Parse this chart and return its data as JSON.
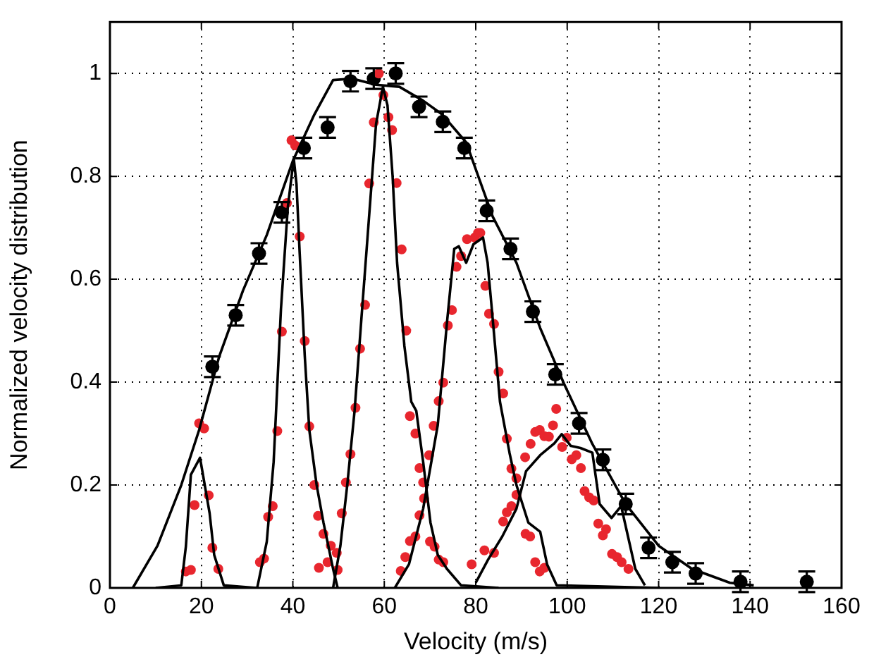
{
  "chart_data": {
    "type": "line",
    "xlabel": "Velocity (m/s)",
    "ylabel": "Normalized velocity distribution",
    "xlim": [
      0,
      160
    ],
    "xticks": [
      0,
      20,
      40,
      60,
      80,
      100,
      120,
      140,
      160
    ],
    "ylim": [
      0,
      1.1
    ],
    "yticks": [
      0,
      0.2,
      0.4,
      0.6,
      0.8,
      1
    ],
    "grid": true,
    "legend": false,
    "marker": "none",
    "line_style": "solid",
    "series": [
      {
        "color": "#000000",
        "x": [
          5,
          10.4,
          15.6,
          19.5,
          23.9,
          29.1,
          34.3,
          40,
          44.7,
          48.8,
          53,
          58.2,
          63.3,
          68.5,
          72.7,
          77.9,
          83.7,
          88.9,
          94.1,
          99.3,
          105.5,
          112.8,
          120,
          127.3,
          135.6,
          140.8
        ],
        "values": [
          0,
          0.082,
          0.2,
          0.307,
          0.45,
          0.578,
          0.686,
          0.83,
          0.92,
          0.987,
          0.99,
          0.978,
          0.974,
          0.947,
          0.92,
          0.866,
          0.722,
          0.632,
          0.505,
          0.397,
          0.28,
          0.163,
          0.082,
          0.037,
          0.01,
          0.005
        ]
      },
      {
        "color": "#000000",
        "x": [
          10,
          15.6,
          16.6,
          17.7,
          19.7,
          21.8,
          22.8,
          24.9,
          32
        ],
        "values": [
          0,
          0.005,
          0.08,
          0.22,
          0.253,
          0.145,
          0.064,
          0.005,
          0
        ]
      },
      {
        "color": "#000000",
        "x": [
          25,
          32.2,
          34.3,
          35.8,
          37.4,
          38.9,
          40.2,
          40.8,
          41.5,
          42.6,
          43.6,
          45.2,
          46.7,
          48.8,
          49.8
        ],
        "values": [
          0,
          0,
          0.09,
          0.245,
          0.542,
          0.74,
          0.835,
          0.785,
          0.65,
          0.452,
          0.307,
          0.2,
          0.127,
          0.037,
          0
        ]
      },
      {
        "color": "#000000",
        "x": [
          48.8,
          50.4,
          51.9,
          53.5,
          55,
          56.6,
          58.2,
          59.7,
          60.7,
          61.8,
          62.8,
          64.4,
          65.9,
          67,
          68.5,
          70.1,
          71.7,
          73.7,
          76.8,
          85
        ],
        "values": [
          0,
          0.082,
          0.2,
          0.344,
          0.524,
          0.713,
          0.902,
          0.974,
          0.938,
          0.803,
          0.632,
          0.47,
          0.362,
          0.344,
          0.245,
          0.127,
          0.064,
          0.037,
          0.005,
          0
        ]
      },
      {
        "color": "#000000",
        "x": [
          62.3,
          65.4,
          68.5,
          71.7,
          73.7,
          75.3,
          76.3,
          77.9,
          79.5,
          81.6,
          82.6,
          83.7,
          85.3,
          87.4,
          88.9,
          91.5,
          94.1,
          95.6,
          97.7,
          120
        ],
        "values": [
          0,
          0.046,
          0.154,
          0.317,
          0.515,
          0.659,
          0.664,
          0.632,
          0.668,
          0.681,
          0.632,
          0.524,
          0.362,
          0.262,
          0.2,
          0.127,
          0.109,
          0.046,
          0.005,
          0
        ]
      },
      {
        "color": "#000000",
        "x": [
          80,
          82.7,
          85.8,
          88.9,
          91,
          94.1,
          97.2,
          98.8,
          100.8,
          102.9,
          105.5,
          107.1,
          109.7,
          111.8,
          113.3,
          114.9,
          117
        ],
        "values": [
          0.01,
          0.055,
          0.1,
          0.154,
          0.227,
          0.258,
          0.281,
          0.299,
          0.276,
          0.272,
          0.263,
          0.163,
          0.136,
          0.159,
          0.1,
          0.037,
          0.005
        ]
      },
      {
        "type": "scatter",
        "marker": "circle",
        "color": "#e8262e",
        "x": [
          16.6,
          17.7,
          19.5,
          20.6,
          18.5,
          21.6,
          22.4,
          23.7,
          32.8,
          33.7,
          34.6,
          35.6,
          36.6,
          37.6,
          38.7,
          39.7,
          40.5,
          41.5,
          42.6,
          43.6,
          44.7,
          45.5,
          46.7,
          45.7,
          48.3,
          49.6,
          47.6,
          49.8,
          50.7,
          51.6,
          52.6,
          53.7,
          54.7,
          55.8,
          56.7,
          57.7,
          58.8,
          59.8,
          60.9,
          61.7,
          62.7,
          63.8,
          64.8,
          65.6,
          66.8,
          67.7,
          68.5,
          68.7,
          67.7,
          66.8,
          65.6,
          64.6,
          63.6,
          70,
          71,
          71.9,
          72.9,
          69.8,
          70.8,
          71.9,
          72.9,
          73.9,
          74.8,
          75.8,
          76.8,
          78.1,
          79.8,
          80.5,
          81,
          82.1,
          82.9,
          84,
          85,
          86,
          86.8,
          87.8,
          88.9,
          88.9,
          87.8,
          86.8,
          86,
          90.9,
          91.9,
          93,
          94,
          95,
          79.1,
          81.9,
          84,
          90.8,
          92,
          93,
          94,
          95,
          96,
          96.9,
          97.6,
          98.9,
          99.9,
          101,
          102,
          103,
          103.8,
          104.8,
          105.8,
          106.8,
          107.8,
          108.5,
          109.8,
          110.9,
          111.9,
          113.4
        ],
        "values": [
          0.032,
          0.035,
          0.32,
          0.31,
          0.161,
          0.18,
          0.078,
          0.037,
          0.05,
          0.057,
          0.138,
          0.159,
          0.305,
          0.498,
          0.748,
          0.87,
          0.86,
          0.683,
          0.48,
          0.314,
          0.2,
          0.14,
          0.105,
          0.039,
          0.082,
          0.068,
          0.05,
          0.035,
          0.145,
          0.205,
          0.26,
          0.35,
          0.465,
          0.55,
          0.786,
          0.905,
          1.0,
          0.958,
          0.915,
          0.89,
          0.787,
          0.658,
          0.5,
          0.334,
          0.3,
          0.233,
          0.205,
          0.174,
          0.141,
          0.1,
          0.091,
          0.06,
          0.033,
          0.09,
          0.08,
          0.055,
          0.05,
          0.258,
          0.315,
          0.363,
          0.399,
          0.51,
          0.54,
          0.624,
          0.645,
          0.678,
          0.681,
          0.69,
          0.69,
          0.587,
          0.533,
          0.513,
          0.42,
          0.378,
          0.29,
          0.232,
          0.213,
          0.181,
          0.159,
          0.147,
          0.129,
          0.105,
          0.1,
          0.05,
          0.032,
          0.039,
          0.046,
          0.073,
          0.068,
          0.254,
          0.28,
          0.303,
          0.307,
          0.295,
          0.294,
          0.316,
          0.348,
          0.274,
          0.292,
          0.25,
          0.258,
          0.233,
          0.188,
          0.176,
          0.17,
          0.125,
          0.102,
          0.114,
          0.066,
          0.06,
          0.05,
          0.037
        ]
      },
      {
        "type": "scatter",
        "marker": "circle",
        "color": "#000000",
        "x": [
          22.4,
          27.5,
          32.6,
          37.6,
          42.4,
          47.6,
          52.6,
          57.7,
          62.5,
          67.6,
          72.8,
          77.5,
          82.4,
          87.6,
          92.5,
          97.4,
          102.6,
          107.8,
          112.8,
          117.8,
          123,
          128.1,
          137.9,
          152.4
        ],
        "values": [
          0.43,
          0.53,
          0.65,
          0.73,
          0.855,
          0.895,
          0.985,
          0.99,
          1.0,
          0.935,
          0.906,
          0.855,
          0.733,
          0.659,
          0.537,
          0.415,
          0.32,
          0.249,
          0.163,
          0.078,
          0.05,
          0.028,
          0.012,
          0.012
        ],
        "errors": [
          0.02,
          0.02,
          0.02,
          0.02,
          0.02,
          0.02,
          0.02,
          0.02,
          0.02,
          0.02,
          0.02,
          0.02,
          0.02,
          0.02,
          0.02,
          0.02,
          0.02,
          0.02,
          0.02,
          0.02,
          0.02,
          0.02,
          0.02,
          0.02
        ]
      }
    ]
  }
}
